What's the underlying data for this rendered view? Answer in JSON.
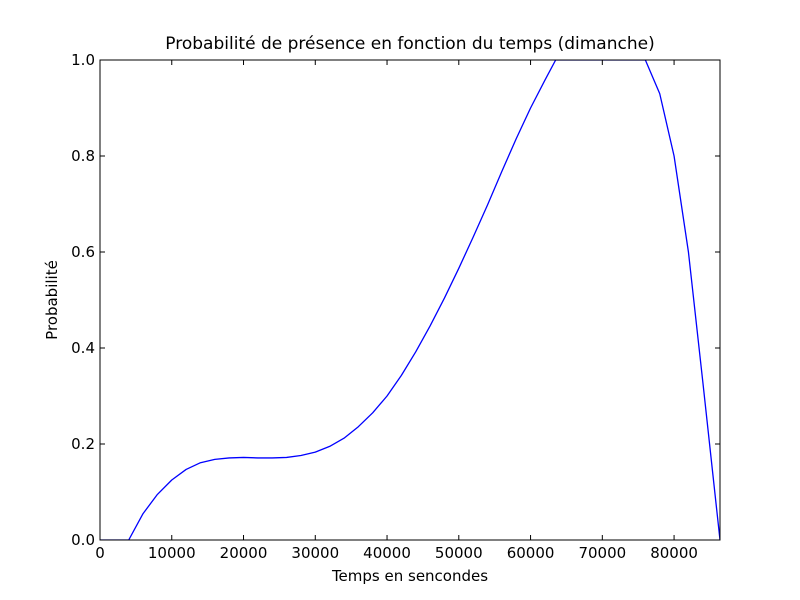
{
  "chart_data": {
    "type": "line",
    "title": "Probabilité de présence en fonction du temps (dimanche)",
    "xlabel": "Temps en sencondes",
    "ylabel": "Probabilité",
    "xlim": [
      0,
      86400
    ],
    "ylim": [
      0,
      1.0
    ],
    "xticks": [
      0,
      10000,
      20000,
      30000,
      40000,
      50000,
      60000,
      70000,
      80000
    ],
    "xtick_labels": [
      "0",
      "10000",
      "20000",
      "30000",
      "40000",
      "50000",
      "60000",
      "70000",
      "80000"
    ],
    "yticks": [
      0,
      0.2,
      0.4,
      0.6,
      0.8,
      1.0
    ],
    "ytick_labels": [
      "0.0",
      "0.2",
      "0.4",
      "0.6",
      "0.8",
      "1.0"
    ],
    "grid": false,
    "series": [
      {
        "color": "#0000ff",
        "x": [
          0,
          4000,
          6000,
          8000,
          10000,
          12000,
          14000,
          16000,
          18000,
          20000,
          22000,
          24000,
          26000,
          28000,
          30000,
          32000,
          34000,
          36000,
          38000,
          40000,
          42000,
          44000,
          46000,
          48000,
          50000,
          52000,
          54000,
          56000,
          58000,
          60000,
          62000,
          63500,
          64000,
          66000,
          68000,
          70000,
          72000,
          74000,
          76000,
          78000,
          80000,
          82000,
          84000,
          86400
        ],
        "y": [
          0,
          0,
          0.055,
          0.095,
          0.125,
          0.147,
          0.161,
          0.168,
          0.171,
          0.172,
          0.171,
          0.171,
          0.172,
          0.176,
          0.183,
          0.195,
          0.212,
          0.236,
          0.265,
          0.3,
          0.343,
          0.392,
          0.446,
          0.504,
          0.566,
          0.631,
          0.698,
          0.768,
          0.836,
          0.9,
          0.958,
          1.0,
          1.0,
          1.0,
          1.0,
          1.0,
          1.0,
          1.0,
          1.0,
          0.93,
          0.8,
          0.6,
          0.33,
          0.0
        ]
      }
    ]
  },
  "colors": {
    "line": "#0000ff",
    "axes": "#000000",
    "background": "#ffffff"
  }
}
